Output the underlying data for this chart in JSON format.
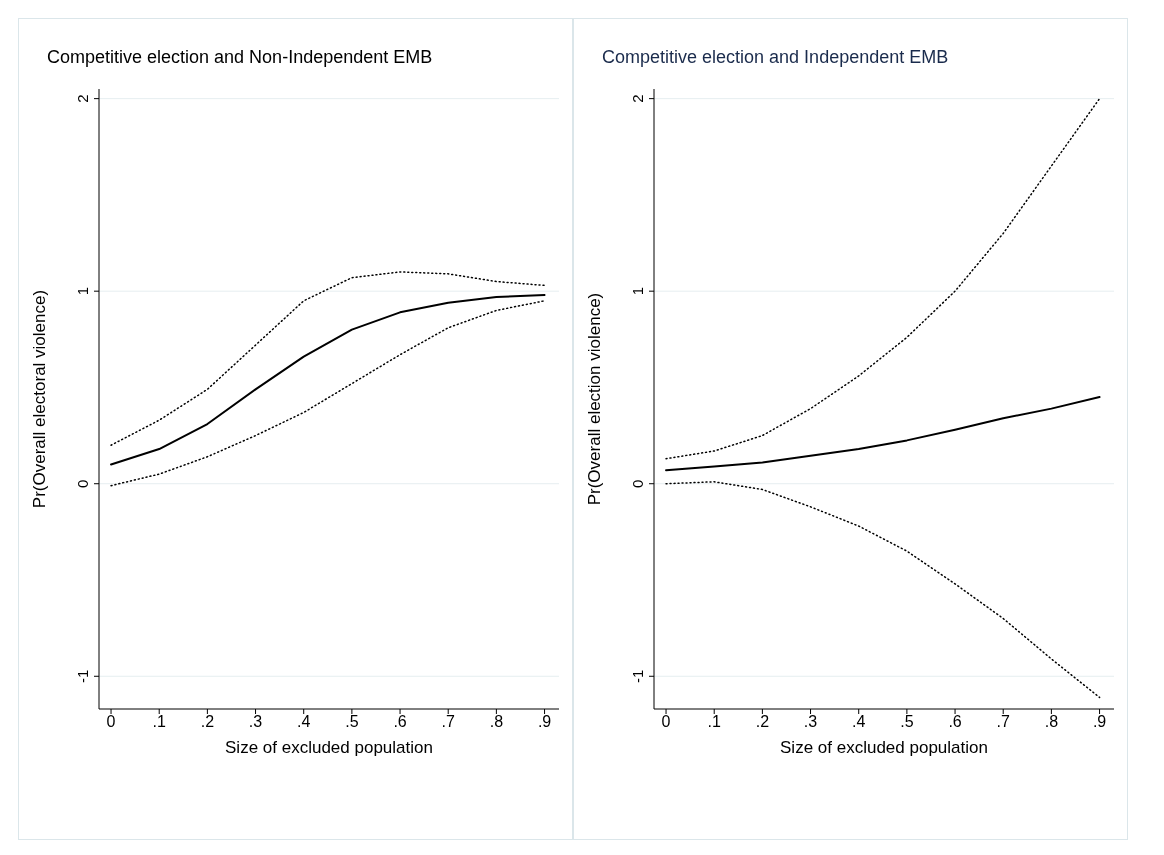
{
  "chart_data": [
    {
      "type": "line",
      "title": "Competitive election and Non-Independent EMB",
      "xlabel": "Size of excluded population",
      "ylabel": "Pr(Overall electoral violence)",
      "x": [
        0,
        0.1,
        0.2,
        0.3,
        0.4,
        0.5,
        0.6,
        0.7,
        0.8,
        0.9
      ],
      "xlim": [
        -0.025,
        0.93
      ],
      "xticks": [
        0,
        {
          "value": 0.1,
          "label": ".1"
        },
        {
          "value": 0.2,
          "label": ".2"
        },
        {
          "value": 0.3,
          "label": ".3"
        },
        {
          "value": 0.4,
          "label": ".4"
        },
        {
          "value": 0.5,
          "label": ".5"
        },
        {
          "value": 0.6,
          "label": ".6"
        },
        {
          "value": 0.7,
          "label": ".7"
        },
        {
          "value": 0.8,
          "label": ".8"
        },
        {
          "value": 0.9,
          "label": ".9"
        }
      ],
      "ylim": [
        -1.17,
        2.05
      ],
      "yticks": [
        -1,
        0,
        1,
        2
      ],
      "grid": "y",
      "marker": "none",
      "series": [
        {
          "color": "#000000",
          "line_style": "solid",
          "values": [
            0.1,
            0.18,
            0.31,
            0.49,
            0.66,
            0.8,
            0.89,
            0.94,
            0.97,
            0.98
          ]
        },
        {
          "color": "#000000",
          "line_style": "dotted",
          "values": [
            0.2,
            0.33,
            0.49,
            0.72,
            0.95,
            1.07,
            1.1,
            1.09,
            1.05,
            1.03
          ]
        },
        {
          "color": "#000000",
          "line_style": "dotted",
          "values": [
            -0.01,
            0.05,
            0.14,
            0.25,
            0.37,
            0.52,
            0.67,
            0.81,
            0.9,
            0.95
          ]
        }
      ]
    },
    {
      "type": "line",
      "title": "Competitive election and Independent EMB",
      "xlabel": "Size of excluded population",
      "ylabel": "Pr(Overall election violence)",
      "x": [
        0,
        0.1,
        0.2,
        0.3,
        0.4,
        0.5,
        0.6,
        0.7,
        0.8,
        0.9
      ],
      "xlim": [
        -0.025,
        0.93
      ],
      "xticks": [
        0,
        {
          "value": 0.1,
          "label": ".1"
        },
        {
          "value": 0.2,
          "label": ".2"
        },
        {
          "value": 0.3,
          "label": ".3"
        },
        {
          "value": 0.4,
          "label": ".4"
        },
        {
          "value": 0.5,
          "label": ".5"
        },
        {
          "value": 0.6,
          "label": ".6"
        },
        {
          "value": 0.7,
          "label": ".7"
        },
        {
          "value": 0.8,
          "label": ".8"
        },
        {
          "value": 0.9,
          "label": ".9"
        }
      ],
      "ylim": [
        -1.17,
        2.05
      ],
      "yticks": [
        -1,
        0,
        1,
        2
      ],
      "grid": "y",
      "marker": "none",
      "series": [
        {
          "color": "#000000",
          "line_style": "solid",
          "values": [
            0.07,
            0.09,
            0.11,
            0.145,
            0.18,
            0.225,
            0.28,
            0.34,
            0.39,
            0.45
          ]
        },
        {
          "color": "#000000",
          "line_style": "dotted",
          "values": [
            0.13,
            0.17,
            0.25,
            0.39,
            0.56,
            0.76,
            1.0,
            1.3,
            1.65,
            2.0
          ]
        },
        {
          "color": "#000000",
          "line_style": "dotted",
          "values": [
            0,
            0.01,
            -0.03,
            -0.12,
            -0.22,
            -0.35,
            -0.52,
            -0.7,
            -0.91,
            -1.11
          ]
        }
      ]
    }
  ]
}
